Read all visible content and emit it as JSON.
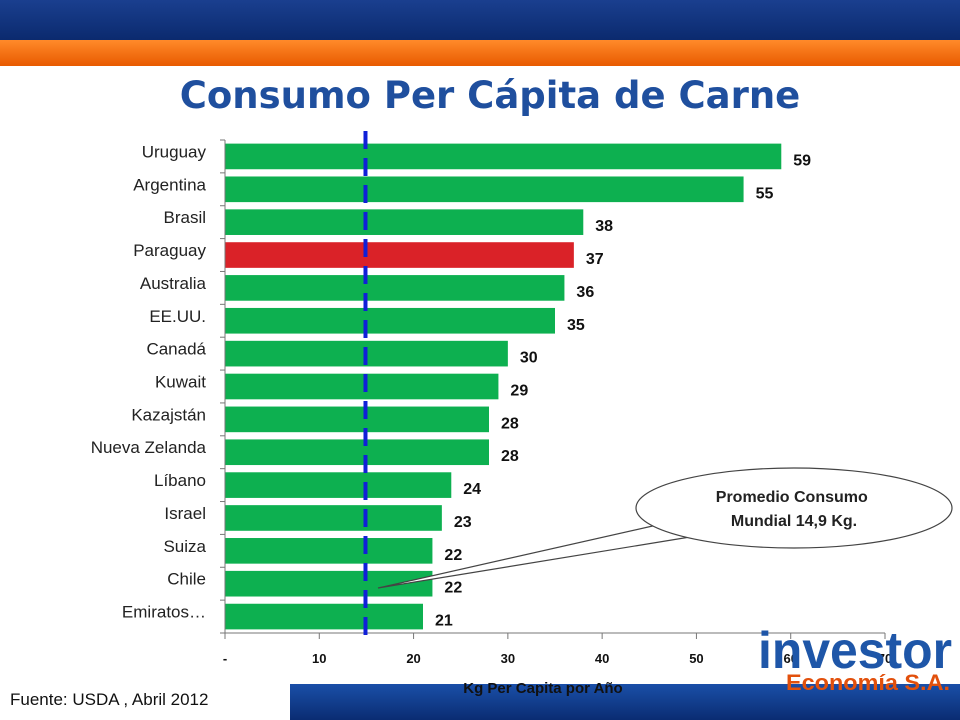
{
  "title": "Consumo Per Cápita de Carne",
  "source": "Fuente: USDA , Abril 2012",
  "colors": {
    "bar": "#0db050",
    "highlight": "#da2228",
    "reference_line": "#1020d8",
    "title": "#1f4f9e"
  },
  "callout": {
    "line1": "Promedio Consumo",
    "line2": "Mundial 14,9 Kg."
  },
  "logo": {
    "name": "investor",
    "subtitle": "Economía S.A."
  },
  "chart_data": {
    "type": "bar",
    "orientation": "horizontal",
    "categories": [
      "Uruguay",
      "Argentina",
      "Brasil",
      "Paraguay",
      "Australia",
      "EE.UU.",
      "Canadá",
      "Kuwait",
      "Kazajstán",
      "Nueva Zelanda",
      "Líbano",
      "Israel",
      "Suiza",
      "Chile",
      "Emiratos…"
    ],
    "values": [
      59,
      55,
      38,
      37,
      36,
      35,
      30,
      29,
      28,
      28,
      24,
      23,
      22,
      22,
      21
    ],
    "highlight_category": "Paraguay",
    "xlabel": "Kg Per Capita por Año",
    "xlim": [
      0,
      70
    ],
    "xticks": [
      0,
      10,
      20,
      30,
      40,
      50,
      60,
      70
    ],
    "xtick_labels": [
      "-",
      "10",
      "20",
      "30",
      "40",
      "50",
      "60",
      "70"
    ],
    "reference_line": {
      "value": 14.9
    },
    "grid": false,
    "legend": "none"
  }
}
